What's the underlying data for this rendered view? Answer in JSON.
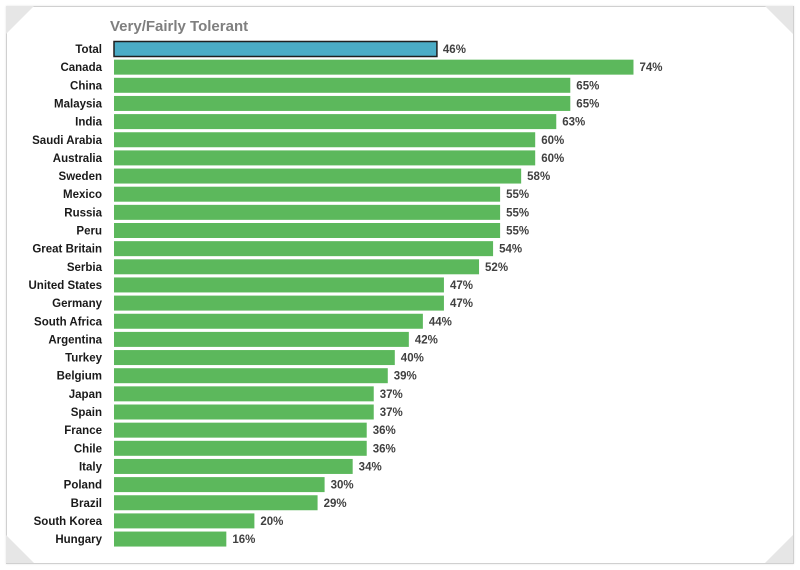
{
  "chart_data": {
    "type": "bar",
    "orientation": "horizontal",
    "title": "Very/Fairly Tolerant",
    "categories": [
      "Total",
      "Canada",
      "China",
      "Malaysia",
      "India",
      "Saudi Arabia",
      "Australia",
      "Sweden",
      "Mexico",
      "Russia",
      "Peru",
      "Great Britain",
      "Serbia",
      "United States",
      "Germany",
      "South Africa",
      "Argentina",
      "Turkey",
      "Belgium",
      "Japan",
      "Spain",
      "France",
      "Chile",
      "Italy",
      "Poland",
      "Brazil",
      "South Korea",
      "Hungary"
    ],
    "values": [
      46,
      74,
      65,
      65,
      63,
      60,
      60,
      58,
      55,
      55,
      55,
      54,
      52,
      47,
      47,
      44,
      42,
      40,
      39,
      37,
      37,
      36,
      36,
      34,
      30,
      29,
      20,
      16
    ],
    "value_labels": [
      "46%",
      "74%",
      "65%",
      "65%",
      "63%",
      "60%",
      "60%",
      "58%",
      "55%",
      "55%",
      "55%",
      "54%",
      "52%",
      "47%",
      "47%",
      "44%",
      "42%",
      "40%",
      "39%",
      "37%",
      "37%",
      "36%",
      "36%",
      "34%",
      "30%",
      "29%",
      "20%",
      "16%"
    ],
    "xlim": [
      0,
      100
    ],
    "grid": false,
    "legend": "none",
    "colors": {
      "highlight": "#4bacc6",
      "bar": "#5cb85c",
      "highlight_border": "#1f1f1f"
    }
  }
}
